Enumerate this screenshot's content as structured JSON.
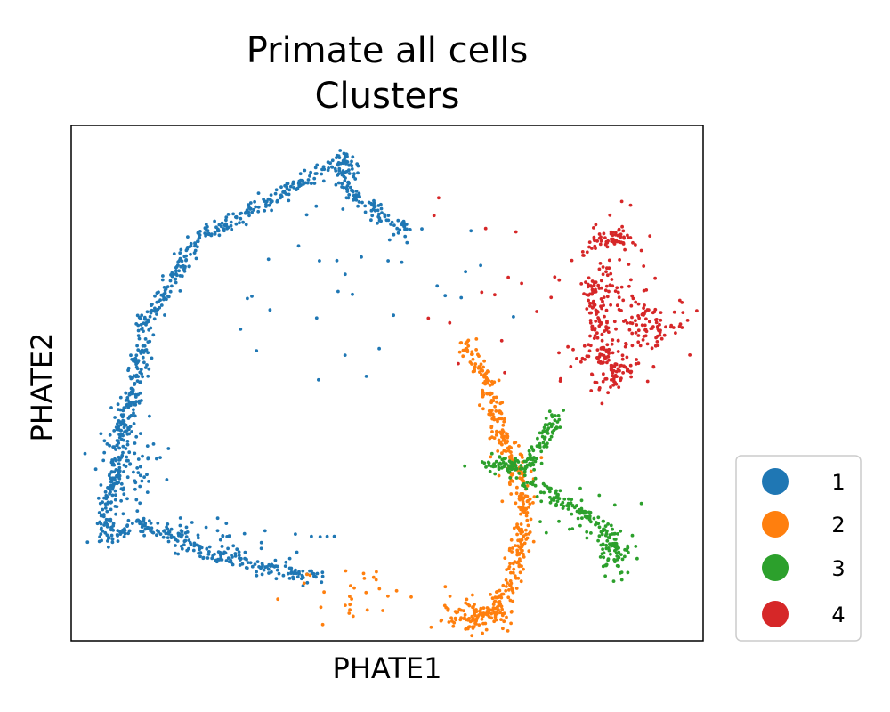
{
  "chart_data": {
    "type": "scatter",
    "title": "Primate all cells\nClusters",
    "title_lines": [
      "Primate all cells",
      "Clusters"
    ],
    "xlabel": "PHATE1",
    "ylabel": "PHATE2",
    "xlim": [
      0,
      100
    ],
    "ylim": [
      0,
      100
    ],
    "ticks": "none",
    "grid": false,
    "legend_position": "outside-lower-right",
    "series": [
      {
        "name": "1",
        "color": "#1f77b4",
        "paths": [
          [
            [
              5,
              21
            ],
            [
              8,
              39
            ],
            [
              12,
              62
            ],
            [
              20,
              78
            ],
            [
              35,
              88
            ],
            [
              44,
              94
            ],
            [
              43,
              93
            ]
          ],
          [
            [
              5,
              19
            ],
            [
              10,
              23
            ],
            [
              16,
              21
            ],
            [
              22,
              17
            ],
            [
              29,
              15
            ],
            [
              35,
              13
            ],
            [
              39,
              12
            ]
          ],
          [
            [
              44,
              93
            ],
            [
              43,
              88
            ],
            [
              48,
              84
            ],
            [
              53,
              79
            ]
          ]
        ],
        "clouds": [
          {
            "cx": 9,
            "cy": 34,
            "sx": 3.0,
            "sy": 6.0,
            "n": 90
          },
          {
            "cx": 26,
            "cy": 20,
            "sx": 6.0,
            "sy": 2.0,
            "n": 40
          },
          {
            "cx": 38,
            "cy": 68,
            "sx": 12.0,
            "sy": 12.0,
            "n": 25
          },
          {
            "cx": 60,
            "cy": 72,
            "sx": 6.0,
            "sy": 5.0,
            "n": 10
          }
        ]
      },
      {
        "name": "2",
        "color": "#ff7f0e",
        "paths": [
          [
            [
              62,
              3
            ],
            [
              67,
              6
            ],
            [
              70,
              12
            ],
            [
              71,
              18
            ],
            [
              72,
              26
            ],
            [
              71,
              32
            ]
          ],
          [
            [
              71,
              32
            ],
            [
              68,
              40
            ],
            [
              66,
              50
            ],
            [
              62,
              58
            ]
          ]
        ],
        "clouds": [
          {
            "cx": 64,
            "cy": 5,
            "sx": 3.0,
            "sy": 1.5,
            "n": 90
          },
          {
            "cx": 45,
            "cy": 10,
            "sx": 5.0,
            "sy": 3.0,
            "n": 30
          },
          {
            "cx": 70,
            "cy": 34,
            "sx": 2.0,
            "sy": 3.0,
            "n": 25
          }
        ]
      },
      {
        "name": "3",
        "color": "#2ca02c",
        "paths": [
          [
            [
              66,
              34
            ],
            [
              69,
              34
            ],
            [
              71,
              33
            ]
          ],
          [
            [
              72,
              34
            ],
            [
              75,
              40
            ],
            [
              77,
              45
            ]
          ],
          [
            [
              72,
              31
            ],
            [
              78,
              27
            ],
            [
              84,
              22
            ],
            [
              87,
              17
            ]
          ]
        ],
        "clouds": [
          {
            "cx": 86,
            "cy": 17,
            "sx": 1.5,
            "sy": 2.5,
            "n": 45
          },
          {
            "cx": 69,
            "cy": 34,
            "sx": 2.0,
            "sy": 0.8,
            "n": 40
          },
          {
            "cx": 80,
            "cy": 25,
            "sx": 5.0,
            "sy": 4.0,
            "n": 20
          }
        ]
      },
      {
        "name": "4",
        "color": "#d62728",
        "paths": [
          [
            [
              81,
              76
            ],
            [
              87,
              79
            ],
            [
              88,
              77
            ]
          ],
          [
            [
              82,
              70
            ],
            [
              84,
              58
            ],
            [
              86,
              50
            ]
          ]
        ],
        "clouds": [
          {
            "cx": 92,
            "cy": 62,
            "sx": 3.0,
            "sy": 2.5,
            "n": 90
          },
          {
            "cx": 85,
            "cy": 54,
            "sx": 3.5,
            "sy": 2.5,
            "n": 70
          },
          {
            "cx": 86,
            "cy": 70,
            "sx": 3.0,
            "sy": 6.0,
            "n": 60
          },
          {
            "cx": 72,
            "cy": 65,
            "sx": 8.0,
            "sy": 8.0,
            "n": 20
          }
        ]
      }
    ]
  },
  "legend": {
    "items": [
      {
        "label": "1",
        "color": "#1f77b4"
      },
      {
        "label": "2",
        "color": "#ff7f0e"
      },
      {
        "label": "3",
        "color": "#2ca02c"
      },
      {
        "label": "4",
        "color": "#d62728"
      }
    ]
  }
}
